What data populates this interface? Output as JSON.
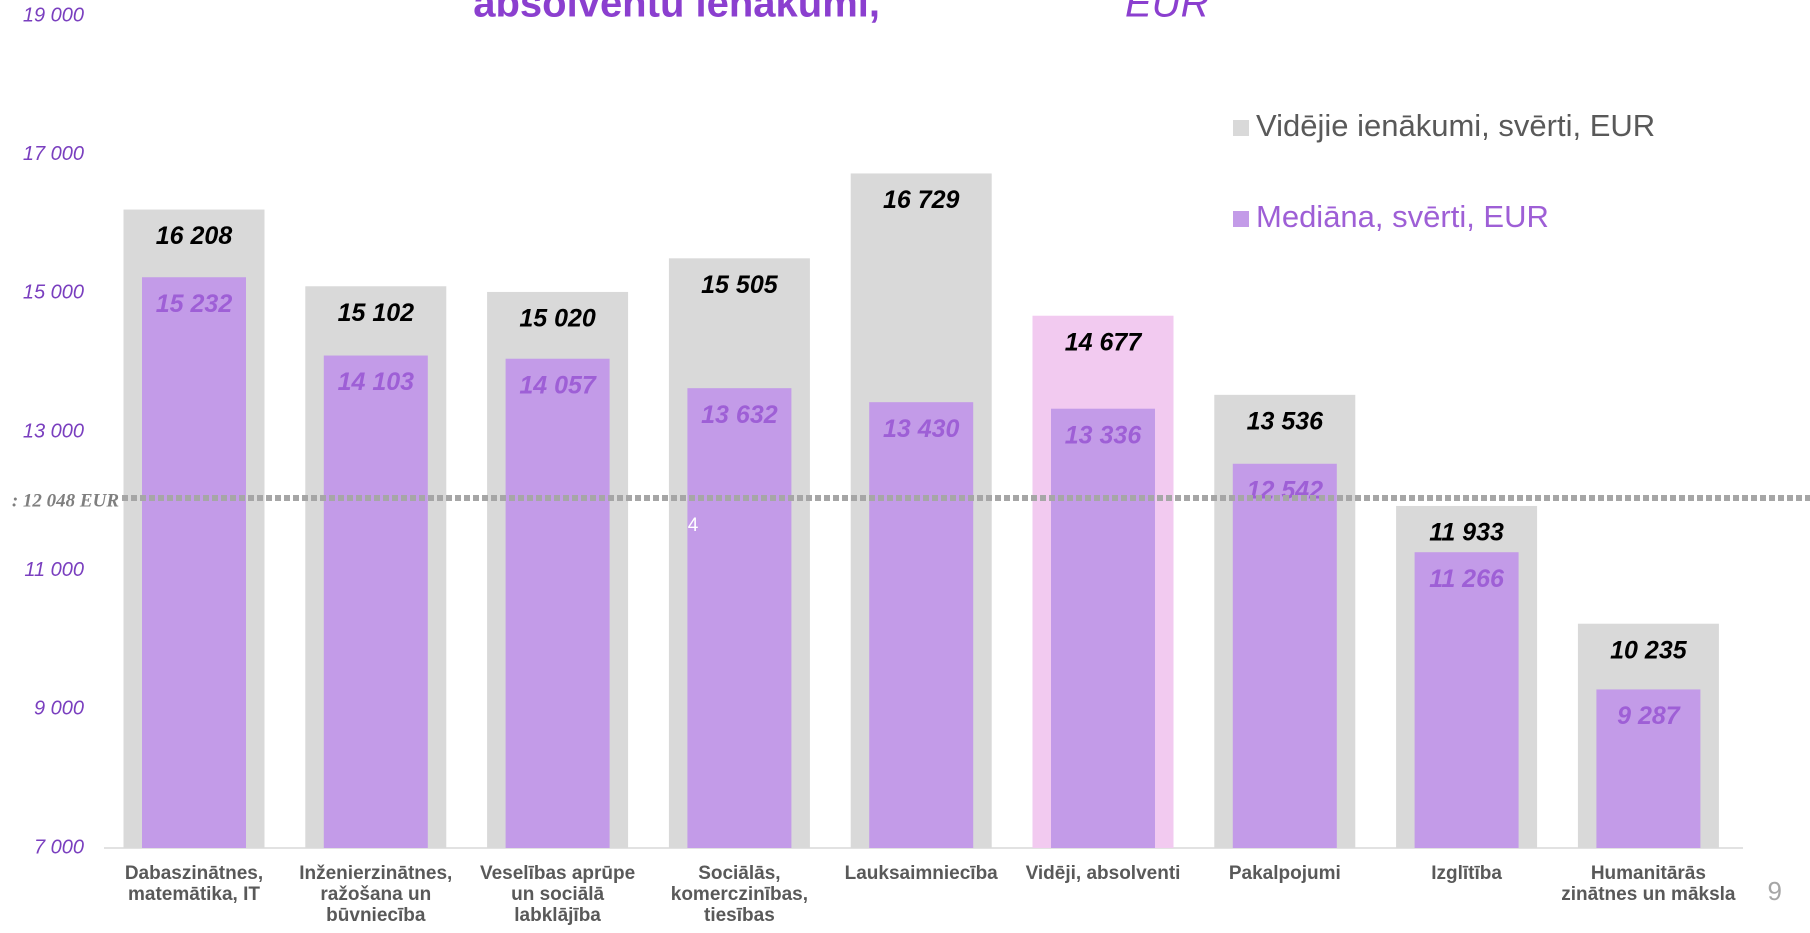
{
  "chart_data": {
    "type": "bar",
    "title": "absolventu ienākumi,",
    "title_unit": "EUR",
    "categories": [
      "Dabaszinātnes, matemātika, IT",
      "Inženierzinātnes, ražošana un būvniecība",
      "Veselības aprūpe un sociālā labklājība",
      "Sociālās, komerczinības, tiesības",
      "Lauksaimniecība",
      "Vidēji, absolventi",
      "Pakalpojumi",
      "Izglītība",
      "Humanitārās zinātnes un māksla"
    ],
    "series": [
      {
        "name": "Vidējie ienākumi, svērti, EUR",
        "color": "#d9d9d9",
        "colors": [
          "#d9d9d9",
          "#d9d9d9",
          "#d9d9d9",
          "#d9d9d9",
          "#d9d9d9",
          "#f2caf0",
          "#d9d9d9",
          "#d9d9d9",
          "#d9d9d9"
        ],
        "label_color": "#000000",
        "values": [
          16208,
          15102,
          15020,
          15505,
          16729,
          14677,
          13536,
          11933,
          10235
        ],
        "value_labels": [
          "16 208",
          "15 102",
          "15 020",
          "15 505",
          "16 729",
          "14 677",
          "13 536",
          "11 933",
          "10 235"
        ]
      },
      {
        "name": "Mediāna, svērti, EUR",
        "color": "#c39be8",
        "label_color": "#9e5fd6",
        "values": [
          15232,
          14103,
          14057,
          13632,
          13430,
          13336,
          12542,
          11266,
          9287
        ],
        "value_labels": [
          "15 232",
          "14 103",
          "14 057",
          "13 632",
          "13 430",
          "13 336",
          "12 542",
          "11 266",
          "9 287"
        ]
      }
    ],
    "ylim": [
      7000,
      19000
    ],
    "yticks": [
      {
        "value": 7000,
        "label": "7 000"
      },
      {
        "value": 9000,
        "label": "9 000"
      },
      {
        "value": 11000,
        "label": "11 000"
      },
      {
        "value": 13000,
        "label": "13 000"
      },
      {
        "value": 15000,
        "label": "15 000"
      },
      {
        "value": 17000,
        "label": "17 000"
      },
      {
        "value": 19000,
        "label": "19 000"
      }
    ],
    "reference_line": {
      "value": 12048,
      "label": ": 12 048 EUR",
      "color": "#a6a6a6"
    },
    "annotation": "4",
    "legend": "top-right",
    "page_number": "9"
  }
}
